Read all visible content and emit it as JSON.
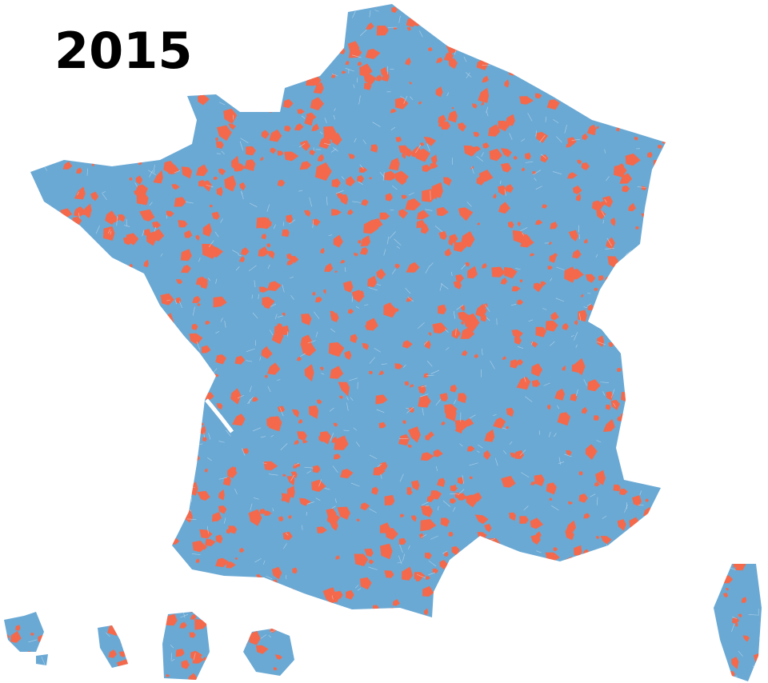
{
  "title": "2015"
}
